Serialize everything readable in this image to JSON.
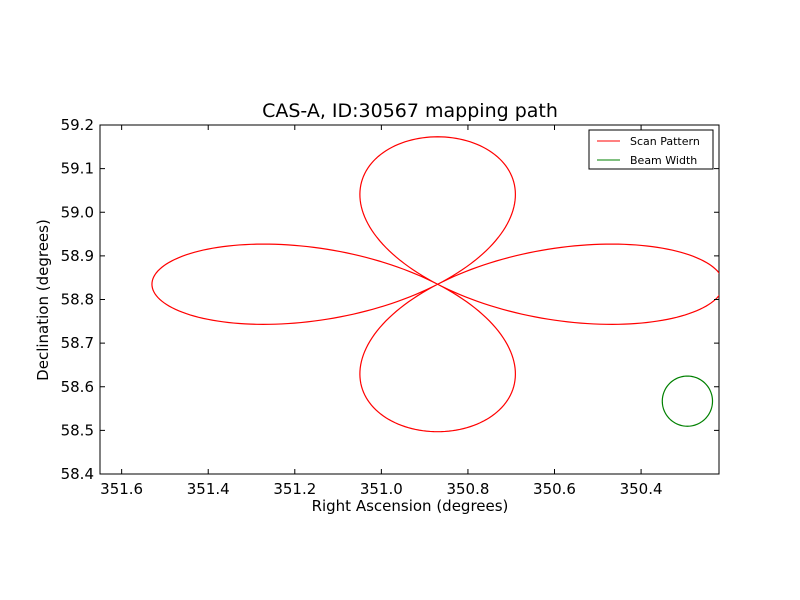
{
  "chart_data": {
    "type": "line",
    "title": "CAS-A, ID:30567 mapping path",
    "xlabel": "Right Ascension (degrees)",
    "ylabel": "Declination (degrees)",
    "xlim": [
      351.65,
      350.22
    ],
    "ylim": [
      58.4,
      59.2
    ],
    "x_inverted": true,
    "x_ticks": [
      351.6,
      351.4,
      351.2,
      351.0,
      350.8,
      350.6,
      350.4
    ],
    "x_tick_labels": [
      "351.6",
      "351.4",
      "351.2",
      "351.0",
      "350.8",
      "350.6",
      "350.4"
    ],
    "y_ticks": [
      58.4,
      58.5,
      58.6,
      58.7,
      58.8,
      58.9,
      59.0,
      59.1,
      59.2
    ],
    "y_tick_labels": [
      "58.4",
      "58.5",
      "58.6",
      "58.7",
      "58.8",
      "58.9",
      "59.0",
      "59.1",
      "59.2"
    ],
    "grid": false,
    "legend_position": "top-right",
    "series": [
      {
        "name": "Scan Pattern",
        "color": "#ff0000",
        "kind": "rose",
        "center": {
          "ra": 350.87,
          "dec": 58.835
        },
        "lobe_extent": {
          "ra": 0.66,
          "dec": 0.338
        },
        "points": 480
      },
      {
        "name": "Beam Width",
        "color": "#008000",
        "kind": "circle",
        "center": {
          "ra": 350.293,
          "dec": 58.567
        },
        "radius": {
          "ra": 0.058,
          "dec": 0.0575
        },
        "points": 120
      }
    ]
  }
}
